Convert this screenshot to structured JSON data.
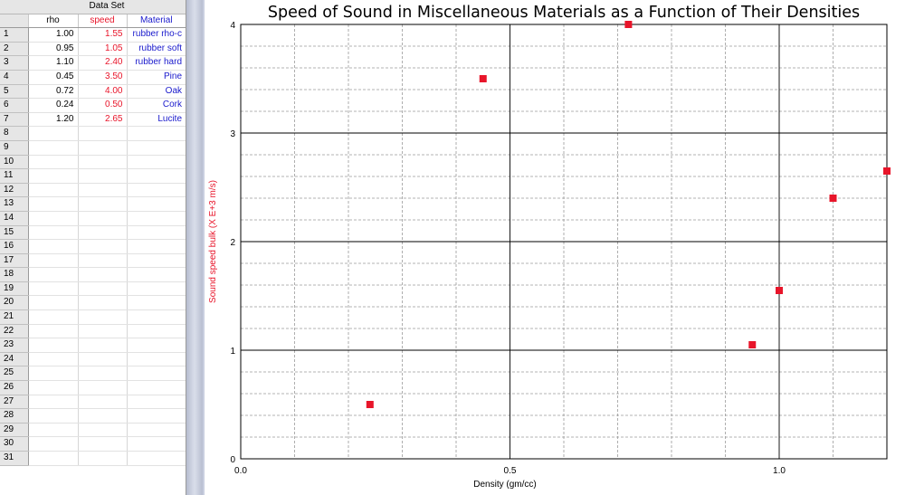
{
  "table": {
    "title": "Data Set",
    "columns": [
      {
        "label": "rho",
        "color": "#000000"
      },
      {
        "label": "speed",
        "color": "#e8152a"
      },
      {
        "label": "Material",
        "color": "#1a1acc"
      }
    ],
    "rows": [
      {
        "index": "1",
        "rho": "1.00",
        "speed": "1.55",
        "material": "rubber rho-c"
      },
      {
        "index": "2",
        "rho": "0.95",
        "speed": "1.05",
        "material": "rubber soft"
      },
      {
        "index": "3",
        "rho": "1.10",
        "speed": "2.40",
        "material": "rubber hard"
      },
      {
        "index": "4",
        "rho": "0.45",
        "speed": "3.50",
        "material": "Pine"
      },
      {
        "index": "5",
        "rho": "0.72",
        "speed": "4.00",
        "material": "Oak"
      },
      {
        "index": "6",
        "rho": "0.24",
        "speed": "0.50",
        "material": "Cork"
      },
      {
        "index": "7",
        "rho": "1.20",
        "speed": "2.65",
        "material": "Lucite"
      }
    ],
    "empty_row_indices": [
      "8",
      "9",
      "10",
      "11",
      "12",
      "13",
      "14",
      "15",
      "16",
      "17",
      "18",
      "19",
      "20",
      "21",
      "22",
      "23",
      "24",
      "25",
      "26",
      "27",
      "28",
      "29",
      "30",
      "31"
    ]
  },
  "chart_data": {
    "type": "scatter",
    "title": "Speed of Sound in Miscellaneous Materials as a Function of Their Densities",
    "xlabel": "Density (gm/cc)",
    "ylabel": "Sound speed bulk (X E+3 m/s)",
    "xlim": [
      0.0,
      1.2
    ],
    "ylim": [
      0,
      4
    ],
    "x_ticks": [
      "0.0",
      "0.5",
      "1.0"
    ],
    "x_tick_values": [
      0.0,
      0.5,
      1.0
    ],
    "y_ticks": [
      "0",
      "1",
      "2",
      "3",
      "4"
    ],
    "y_tick_values": [
      0,
      1,
      2,
      3,
      4
    ],
    "grid": true,
    "series": [
      {
        "color": "#e8152a",
        "marker": "square",
        "x": [
          1.0,
          0.95,
          1.1,
          0.45,
          0.72,
          0.24,
          1.2
        ],
        "y": [
          1.55,
          1.05,
          2.4,
          3.5,
          4.0,
          0.5,
          2.65
        ]
      }
    ]
  }
}
